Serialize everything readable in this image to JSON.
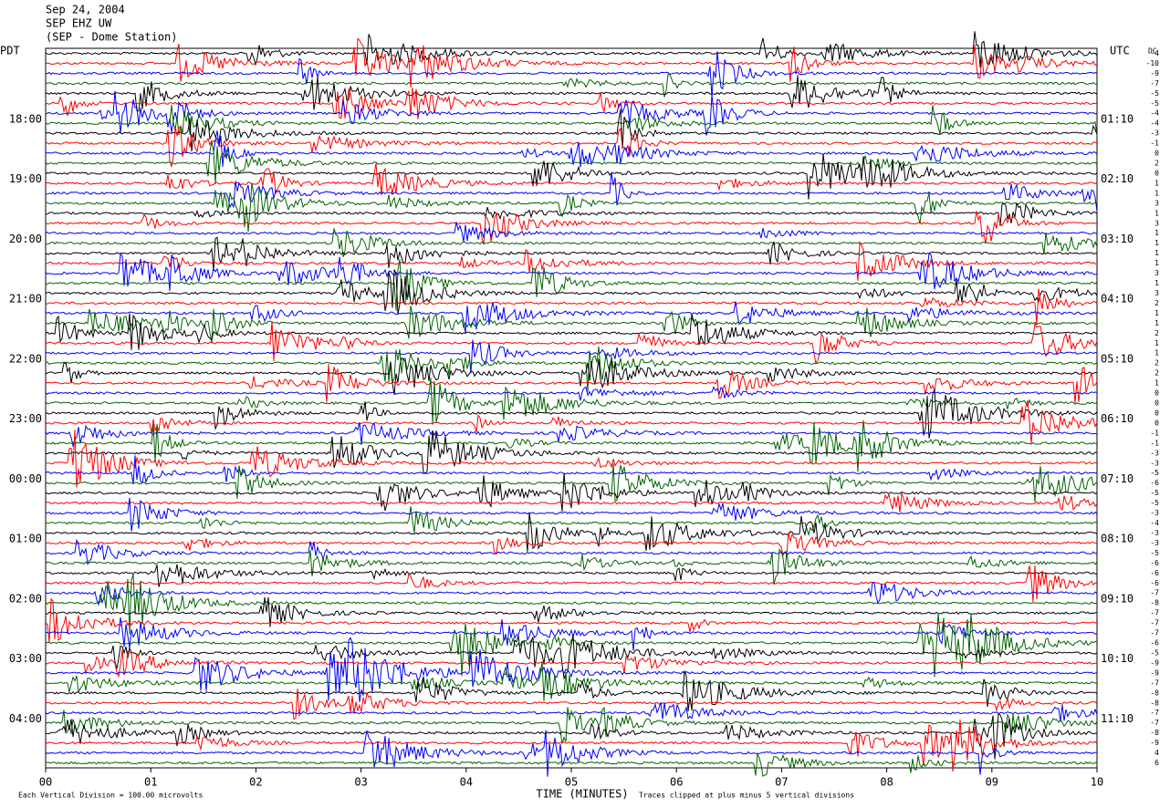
{
  "header": {
    "date": "Sep 24, 2004",
    "station": "SEP EHZ UW",
    "location": "(SEP - Dome Station)"
  },
  "chart_data": {
    "type": "helicorder",
    "left_axis_label": "PDT",
    "right_axis_label": "UTC",
    "left_labels": [
      "18:00",
      "19:00",
      "20:00",
      "21:00",
      "22:00",
      "23:00",
      "00:00",
      "01:00",
      "02:00",
      "03:00",
      "04:00"
    ],
    "right_labels": [
      "01:10",
      "02:10",
      "03:10",
      "04:10",
      "05:10",
      "06:10",
      "07:10",
      "08:10",
      "09:10",
      "10:10",
      "11:10"
    ],
    "xlim": [
      0,
      10
    ],
    "xticks": [
      {
        "value": 0,
        "label": "00"
      },
      {
        "value": 1,
        "label": "01"
      },
      {
        "value": 2,
        "label": "02"
      },
      {
        "value": 3,
        "label": "03"
      },
      {
        "value": 4,
        "label": "04"
      },
      {
        "value": 5,
        "label": "05"
      },
      {
        "value": 6,
        "label": "06"
      },
      {
        "value": 7,
        "label": "07"
      },
      {
        "value": 8,
        "label": "08"
      },
      {
        "value": 9,
        "label": "09"
      },
      10
    ],
    "xlabel": "TIME (MINUTES)",
    "trace_colors": [
      "#000000",
      "#ff0000",
      "#0000ff",
      "#006400"
    ],
    "dc_label": "DC",
    "dc_offsets": [
      -4,
      -10,
      -9,
      -7,
      -5,
      -5,
      -4,
      -4,
      -3,
      -1,
      0,
      2,
      0,
      1,
      1,
      3,
      1,
      3,
      1,
      1,
      1,
      1,
      3,
      1,
      3,
      2,
      1,
      1,
      2,
      1,
      1,
      2,
      2,
      1,
      0,
      0,
      0,
      0,
      -1,
      -1,
      -3,
      -3,
      -5,
      -6,
      -5,
      -5,
      -3,
      -4,
      -3,
      -3,
      -5,
      -6,
      -6,
      -6,
      -7,
      -8,
      -7,
      -7,
      -7,
      -6,
      -5,
      -9,
      -9,
      -7,
      -8,
      -8,
      -7,
      -7,
      -8,
      -9,
      4,
      6
    ],
    "footnote_left": "Each Vertical Division = 100.00 microvolts",
    "footnote_right": "Traces clipped at plus minus 5 vertical divisions"
  }
}
